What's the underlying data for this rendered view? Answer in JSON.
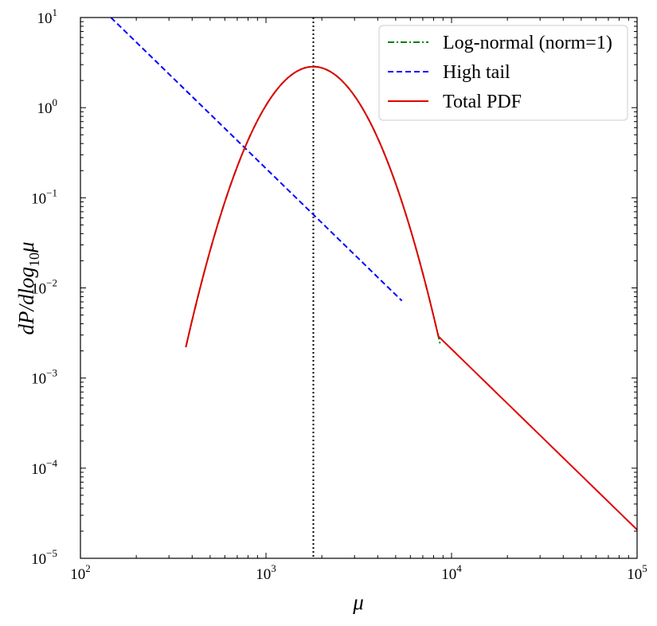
{
  "chart_data": {
    "type": "line",
    "x_scale": "log",
    "y_scale": "log",
    "xlabel": "μ",
    "ylabel": "dP/dlog10μ",
    "xlim": [
      100,
      100000
    ],
    "ylim": [
      1e-05,
      10
    ],
    "x_ticks": [
      {
        "base": "10",
        "exp": "2",
        "value": 100
      },
      {
        "base": "10",
        "exp": "3",
        "value": 1000
      },
      {
        "base": "10",
        "exp": "4",
        "value": 10000
      },
      {
        "base": "10",
        "exp": "5",
        "value": 100000
      }
    ],
    "y_ticks": [
      {
        "base": "10",
        "exp": "1",
        "value": 10
      },
      {
        "base": "10",
        "exp": "0",
        "value": 1
      },
      {
        "base": "10",
        "exp": "−1",
        "value": 0.1
      },
      {
        "base": "10",
        "exp": "−2",
        "value": 0.01
      },
      {
        "base": "10",
        "exp": "−3",
        "value": 0.001
      },
      {
        "base": "10",
        "exp": "−4",
        "value": 0.0001
      },
      {
        "base": "10",
        "exp": "−5",
        "value": 1e-05
      }
    ],
    "vline": {
      "x": 1800,
      "color": "#000000",
      "style": "dotted"
    },
    "legend": {
      "position": "top-right"
    },
    "series": [
      {
        "name": "Log-normal (norm=1)",
        "color": "#008000",
        "style": "dashdot",
        "kind": "lognormal",
        "peak_x": 1800,
        "peak_y": 2.85,
        "sigma_log10": 0.1815,
        "x_range": [
          370,
          8700
        ]
      },
      {
        "name": "High tail",
        "color": "#0000ff",
        "style": "dashed",
        "kind": "powerlaw",
        "points": [
          [
            146,
            10
          ],
          [
            5400,
            0.0072
          ]
        ]
      },
      {
        "name": "Total PDF",
        "color": "#e00000",
        "style": "solid",
        "kind": "max_of_lognormal_and_tail",
        "x_range": [
          370,
          100000
        ]
      }
    ]
  }
}
